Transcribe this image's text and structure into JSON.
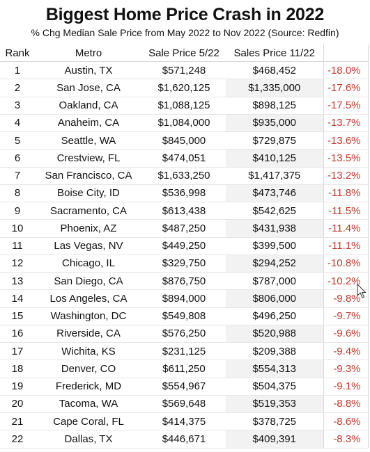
{
  "title": "Biggest Home Price Crash in 2022",
  "subtitle": "% Chg Median Sale Price from May 2022 to Nov 2022 (Source: Redfin)",
  "columns": [
    "Rank",
    "Metro",
    "Sale Price 5/22",
    "Sales Price 11/22",
    ""
  ],
  "rows": [
    {
      "rank": "1",
      "metro": "Austin, TX",
      "p1": "$571,248",
      "p2": "$468,452",
      "pct": "-18.0%"
    },
    {
      "rank": "2",
      "metro": "San Jose, CA",
      "p1": "$1,620,125",
      "p2": "$1,335,000",
      "pct": "-17.6%"
    },
    {
      "rank": "3",
      "metro": "Oakland, CA",
      "p1": "$1,088,125",
      "p2": "$898,125",
      "pct": "-17.5%"
    },
    {
      "rank": "4",
      "metro": "Anaheim, CA",
      "p1": "$1,084,000",
      "p2": "$935,000",
      "pct": "-13.7%"
    },
    {
      "rank": "5",
      "metro": "Seattle, WA",
      "p1": "$845,000",
      "p2": "$729,875",
      "pct": "-13.6%"
    },
    {
      "rank": "6",
      "metro": "Crestview, FL",
      "p1": "$474,051",
      "p2": "$410,125",
      "pct": "-13.5%"
    },
    {
      "rank": "7",
      "metro": "San Francisco, CA",
      "p1": "$1,633,250",
      "p2": "$1,417,375",
      "pct": "-13.2%"
    },
    {
      "rank": "8",
      "metro": "Boise City, ID",
      "p1": "$536,998",
      "p2": "$473,746",
      "pct": "-11.8%"
    },
    {
      "rank": "9",
      "metro": "Sacramento, CA",
      "p1": "$613,438",
      "p2": "$542,625",
      "pct": "-11.5%"
    },
    {
      "rank": "10",
      "metro": "Phoenix, AZ",
      "p1": "$487,250",
      "p2": "$431,938",
      "pct": "-11.4%"
    },
    {
      "rank": "11",
      "metro": "Las Vegas, NV",
      "p1": "$449,250",
      "p2": "$399,500",
      "pct": "-11.1%"
    },
    {
      "rank": "12",
      "metro": "Chicago, IL",
      "p1": "$329,750",
      "p2": "$294,252",
      "pct": "-10.8%"
    },
    {
      "rank": "13",
      "metro": "San Diego, CA",
      "p1": "$876,750",
      "p2": "$787,000",
      "pct": "-10.2%"
    },
    {
      "rank": "14",
      "metro": "Los Angeles, CA",
      "p1": "$894,000",
      "p2": "$806,000",
      "pct": "-9.8%"
    },
    {
      "rank": "15",
      "metro": "Washington, DC",
      "p1": "$549,808",
      "p2": "$496,250",
      "pct": "-9.7%"
    },
    {
      "rank": "16",
      "metro": "Riverside, CA",
      "p1": "$576,250",
      "p2": "$520,988",
      "pct": "-9.6%"
    },
    {
      "rank": "17",
      "metro": "Wichita, KS",
      "p1": "$231,125",
      "p2": "$209,388",
      "pct": "-9.4%"
    },
    {
      "rank": "18",
      "metro": "Denver, CO",
      "p1": "$611,250",
      "p2": "$554,313",
      "pct": "-9.3%"
    },
    {
      "rank": "19",
      "metro": "Frederick, MD",
      "p1": "$554,967",
      "p2": "$504,375",
      "pct": "-9.1%"
    },
    {
      "rank": "20",
      "metro": "Tacoma, WA",
      "p1": "$569,648",
      "p2": "$519,353",
      "pct": "-8.8%"
    },
    {
      "rank": "21",
      "metro": "Cape Coral, FL",
      "p1": "$414,375",
      "p2": "$378,725",
      "pct": "-8.6%"
    },
    {
      "rank": "22",
      "metro": "Dallas, TX",
      "p1": "$446,671",
      "p2": "$409,391",
      "pct": "-8.3%"
    }
  ],
  "colors": {
    "negative_pct": "#c0392b",
    "shade": "#f2f2f2"
  },
  "icons": {
    "cursor": "mouse-pointer-icon"
  }
}
